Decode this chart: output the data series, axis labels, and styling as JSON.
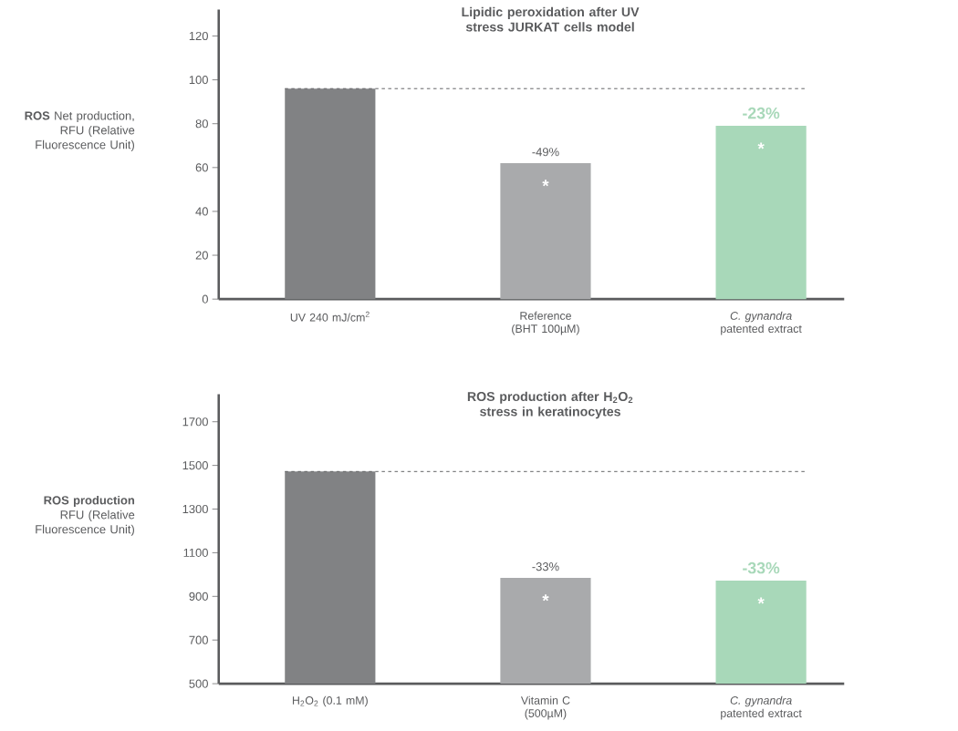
{
  "chart_data": [
    {
      "type": "bar",
      "title": "Lipidic peroxidation after UV stress JURKAT cells model",
      "ylabel": "**ROS** Net production, RFU (Relative Fluorescence Unit)",
      "categories": [
        "UV 240 mJ/cm$^{2}$",
        "Reference (BHT 100µM)",
        "*C. gynandra* patented extract"
      ],
      "values": [
        96,
        62,
        79
      ],
      "colors": [
        "#818284",
        "#a9aaac",
        "#a8d8b9"
      ],
      "ylim": [
        0,
        132
      ],
      "yticks": [
        0,
        20,
        40,
        60,
        80,
        100,
        120
      ],
      "ref_lines": [
        {
          "axis": "y",
          "value": 96,
          "line_style": "dashed"
        }
      ],
      "annotations": [
        {
          "text": "-49%",
          "x": "Reference (BHT 100µM)",
          "y": 62
        },
        {
          "text": "-23%",
          "x": "*C. gynandra* patented extract",
          "y": 79
        },
        "*",
        "*"
      ]
    },
    {
      "type": "bar",
      "title": "ROS production after H$_{2}$O$_{2}$ stress in keratinocytes",
      "ylabel": "**ROS production** RFU (Relative Fluorescence Unit)",
      "categories": [
        "H$_{2}$O$_{2}$ (0.1 mM)",
        "Vitamin C (500µM)",
        "*C. gynandra* patented extract"
      ],
      "values": [
        1472,
        985,
        972
      ],
      "colors": [
        "#818284",
        "#a9aaac",
        "#a8d8b9"
      ],
      "ylim": [
        500,
        1826
      ],
      "yticks": [
        500,
        700,
        900,
        1100,
        1300,
        1500,
        1700
      ],
      "ref_lines": [
        {
          "axis": "y",
          "value": 1472,
          "line_style": "dashed"
        }
      ],
      "annotations": [
        {
          "text": "-33%",
          "x": "Vitamin C (500µM)",
          "y": 985
        },
        {
          "text": "-33%",
          "x": "*C. gynandra* patented extract",
          "y": 972
        },
        "*",
        "*"
      ]
    }
  ]
}
